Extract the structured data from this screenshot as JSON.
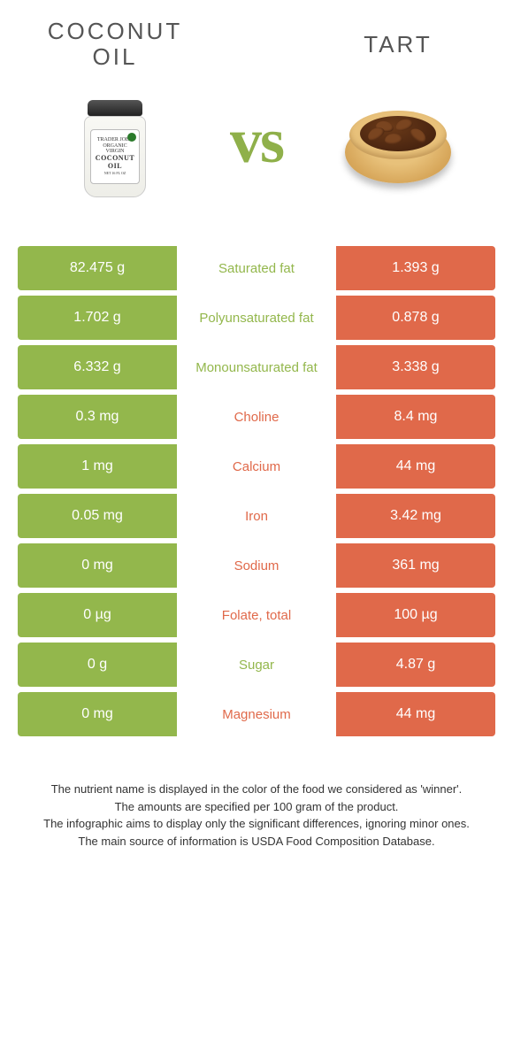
{
  "colors": {
    "green": "#93b74c",
    "orange": "#e0694a",
    "vs": "#8fb04a",
    "text": "#555555"
  },
  "left_food": {
    "title": "Coconut oil"
  },
  "right_food": {
    "title": "Tart"
  },
  "vs_label": "vs",
  "rows": [
    {
      "left": "82.475 g",
      "label": "Saturated fat",
      "right": "1.393 g",
      "winner": "left"
    },
    {
      "left": "1.702 g",
      "label": "Polyunsaturated fat",
      "right": "0.878 g",
      "winner": "left"
    },
    {
      "left": "6.332 g",
      "label": "Monounsaturated fat",
      "right": "3.338 g",
      "winner": "left"
    },
    {
      "left": "0.3 mg",
      "label": "Choline",
      "right": "8.4 mg",
      "winner": "right"
    },
    {
      "left": "1 mg",
      "label": "Calcium",
      "right": "44 mg",
      "winner": "right"
    },
    {
      "left": "0.05 mg",
      "label": "Iron",
      "right": "3.42 mg",
      "winner": "right"
    },
    {
      "left": "0 mg",
      "label": "Sodium",
      "right": "361 mg",
      "winner": "right"
    },
    {
      "left": "0 µg",
      "label": "Folate, total",
      "right": "100 µg",
      "winner": "right"
    },
    {
      "left": "0 g",
      "label": "Sugar",
      "right": "4.87 g",
      "winner": "left"
    },
    {
      "left": "0 mg",
      "label": "Magnesium",
      "right": "44 mg",
      "winner": "right"
    }
  ],
  "footer_lines": [
    "The nutrient name is displayed in the color of the food we considered as 'winner'.",
    "The amounts are specified per 100 gram of the product.",
    "The infographic aims to display only the significant differences, ignoring minor ones.",
    "The main source of information is USDA Food Composition Database."
  ]
}
